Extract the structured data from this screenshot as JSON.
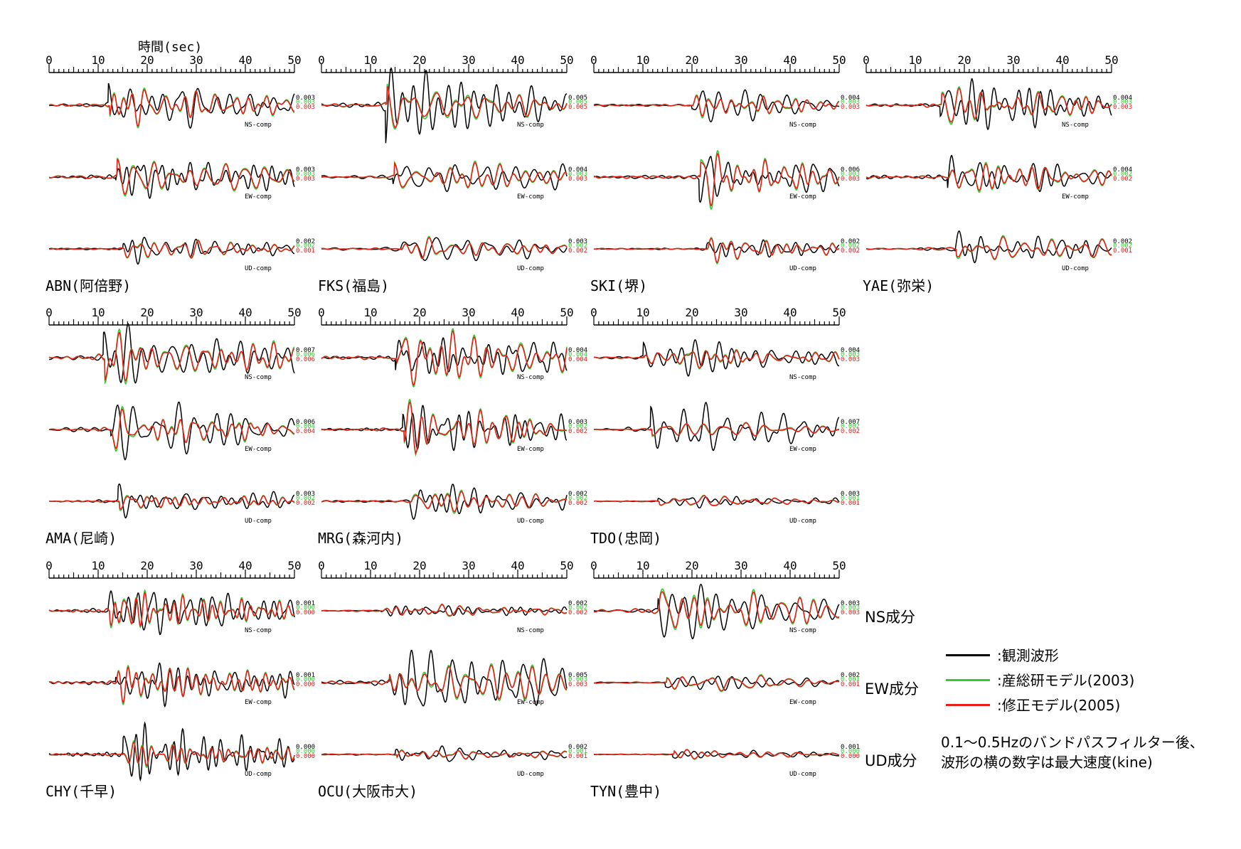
{
  "time_axis_label": "時間(sec)",
  "colors": {
    "observed": "#000000",
    "aist2003": "#33cc33",
    "revised2005": "#e8201c"
  },
  "component_labels": [
    "NS成分",
    "EW成分",
    "UD成分"
  ],
  "legend": [
    {
      "key": "observed",
      "text": ":観測波形"
    },
    {
      "key": "aist2003",
      "text": ":産総研モデル(2003)"
    },
    {
      "key": "revised2005",
      "text": ":修正モデル(2005)"
    }
  ],
  "note": "0.1～0.5Hzのバンドパスフィルター後、波形の横の数字は最大速度(kine)",
  "chart_data": {
    "type": "line",
    "xlabel": "時間(sec)",
    "xlim": [
      0,
      50
    ],
    "x_ticks": [
      0,
      10,
      20,
      30,
      40,
      50
    ],
    "component_tags": [
      "NS-comp",
      "EW-comp",
      "UD-comp"
    ],
    "series_names": [
      ":観測波形",
      ":産総研モデル(2003)",
      ":修正モデル(2005)"
    ],
    "stations": [
      {
        "name": "ABN(阿倍野)",
        "peaks": {
          "NS": [
            "0.003",
            "0.003",
            "0.003"
          ],
          "EW": [
            "0.003",
            "0.003",
            "0.003"
          ],
          "UD": [
            "0.002",
            "0.002",
            "0.001"
          ]
        }
      },
      {
        "name": "FKS(福島)",
        "peaks": {
          "NS": [
            "0.005",
            "0.005",
            "0.005"
          ],
          "EW": [
            "0.004",
            "0.003",
            "0.003"
          ],
          "UD": [
            "0.003",
            "0.002",
            "0.002"
          ]
        }
      },
      {
        "name": "SKI(堺)",
        "peaks": {
          "NS": [
            "0.004",
            "0.003",
            "0.003"
          ],
          "EW": [
            "0.006",
            "0.003",
            "0.003"
          ],
          "UD": [
            "0.002",
            "0.002",
            "0.002"
          ]
        }
      },
      {
        "name": "YAE(弥栄)",
        "peaks": {
          "NS": [
            "0.004",
            "0.003",
            "0.003"
          ],
          "EW": [
            "0.004",
            "0.002",
            "0.002"
          ],
          "UD": [
            "0.002",
            "0.002",
            "0.001"
          ]
        }
      },
      {
        "name": "AMA(尼崎)",
        "peaks": {
          "NS": [
            "0.007",
            "0.006",
            "0.006"
          ],
          "EW": [
            "0.006",
            "0.004",
            "0.004"
          ],
          "UD": [
            "0.003",
            "0.002",
            "0.002"
          ]
        }
      },
      {
        "name": "MRG(森河内)",
        "peaks": {
          "NS": [
            "0.004",
            "0.004",
            "0.004"
          ],
          "EW": [
            "0.003",
            "0.002",
            "0.002"
          ],
          "UD": [
            "0.002",
            "0.002",
            "0.002"
          ]
        }
      },
      {
        "name": "TDO(忠岡)",
        "peaks": {
          "NS": [
            "0.004",
            "0.003",
            "0.003"
          ],
          "EW": [
            "0.007",
            "0.002",
            "0.002"
          ],
          "UD": [
            "0.003",
            "0.001",
            "0.001"
          ]
        }
      },
      {
        "name": "CHY(千早)",
        "peaks": {
          "NS": [
            "0.001",
            "0.000",
            "0.000"
          ],
          "EW": [
            "0.001",
            "0.000",
            "0.000"
          ],
          "UD": [
            "0.000",
            "0.000",
            "0.000"
          ]
        }
      },
      {
        "name": "OCU(大阪市大)",
        "peaks": {
          "NS": [
            "0.002",
            "0.002",
            "0.002"
          ],
          "EW": [
            "0.005",
            "0.003",
            "0.003"
          ],
          "UD": [
            "0.002",
            "0.001",
            "0.001"
          ]
        }
      },
      {
        "name": "TYN(豊中)",
        "peaks": {
          "NS": [
            "0.003",
            "0.003",
            "0.003"
          ],
          "EW": [
            "0.002",
            "0.001",
            "0.001"
          ],
          "UD": [
            "0.001",
            "0.000",
            "0.000"
          ]
        }
      }
    ]
  }
}
